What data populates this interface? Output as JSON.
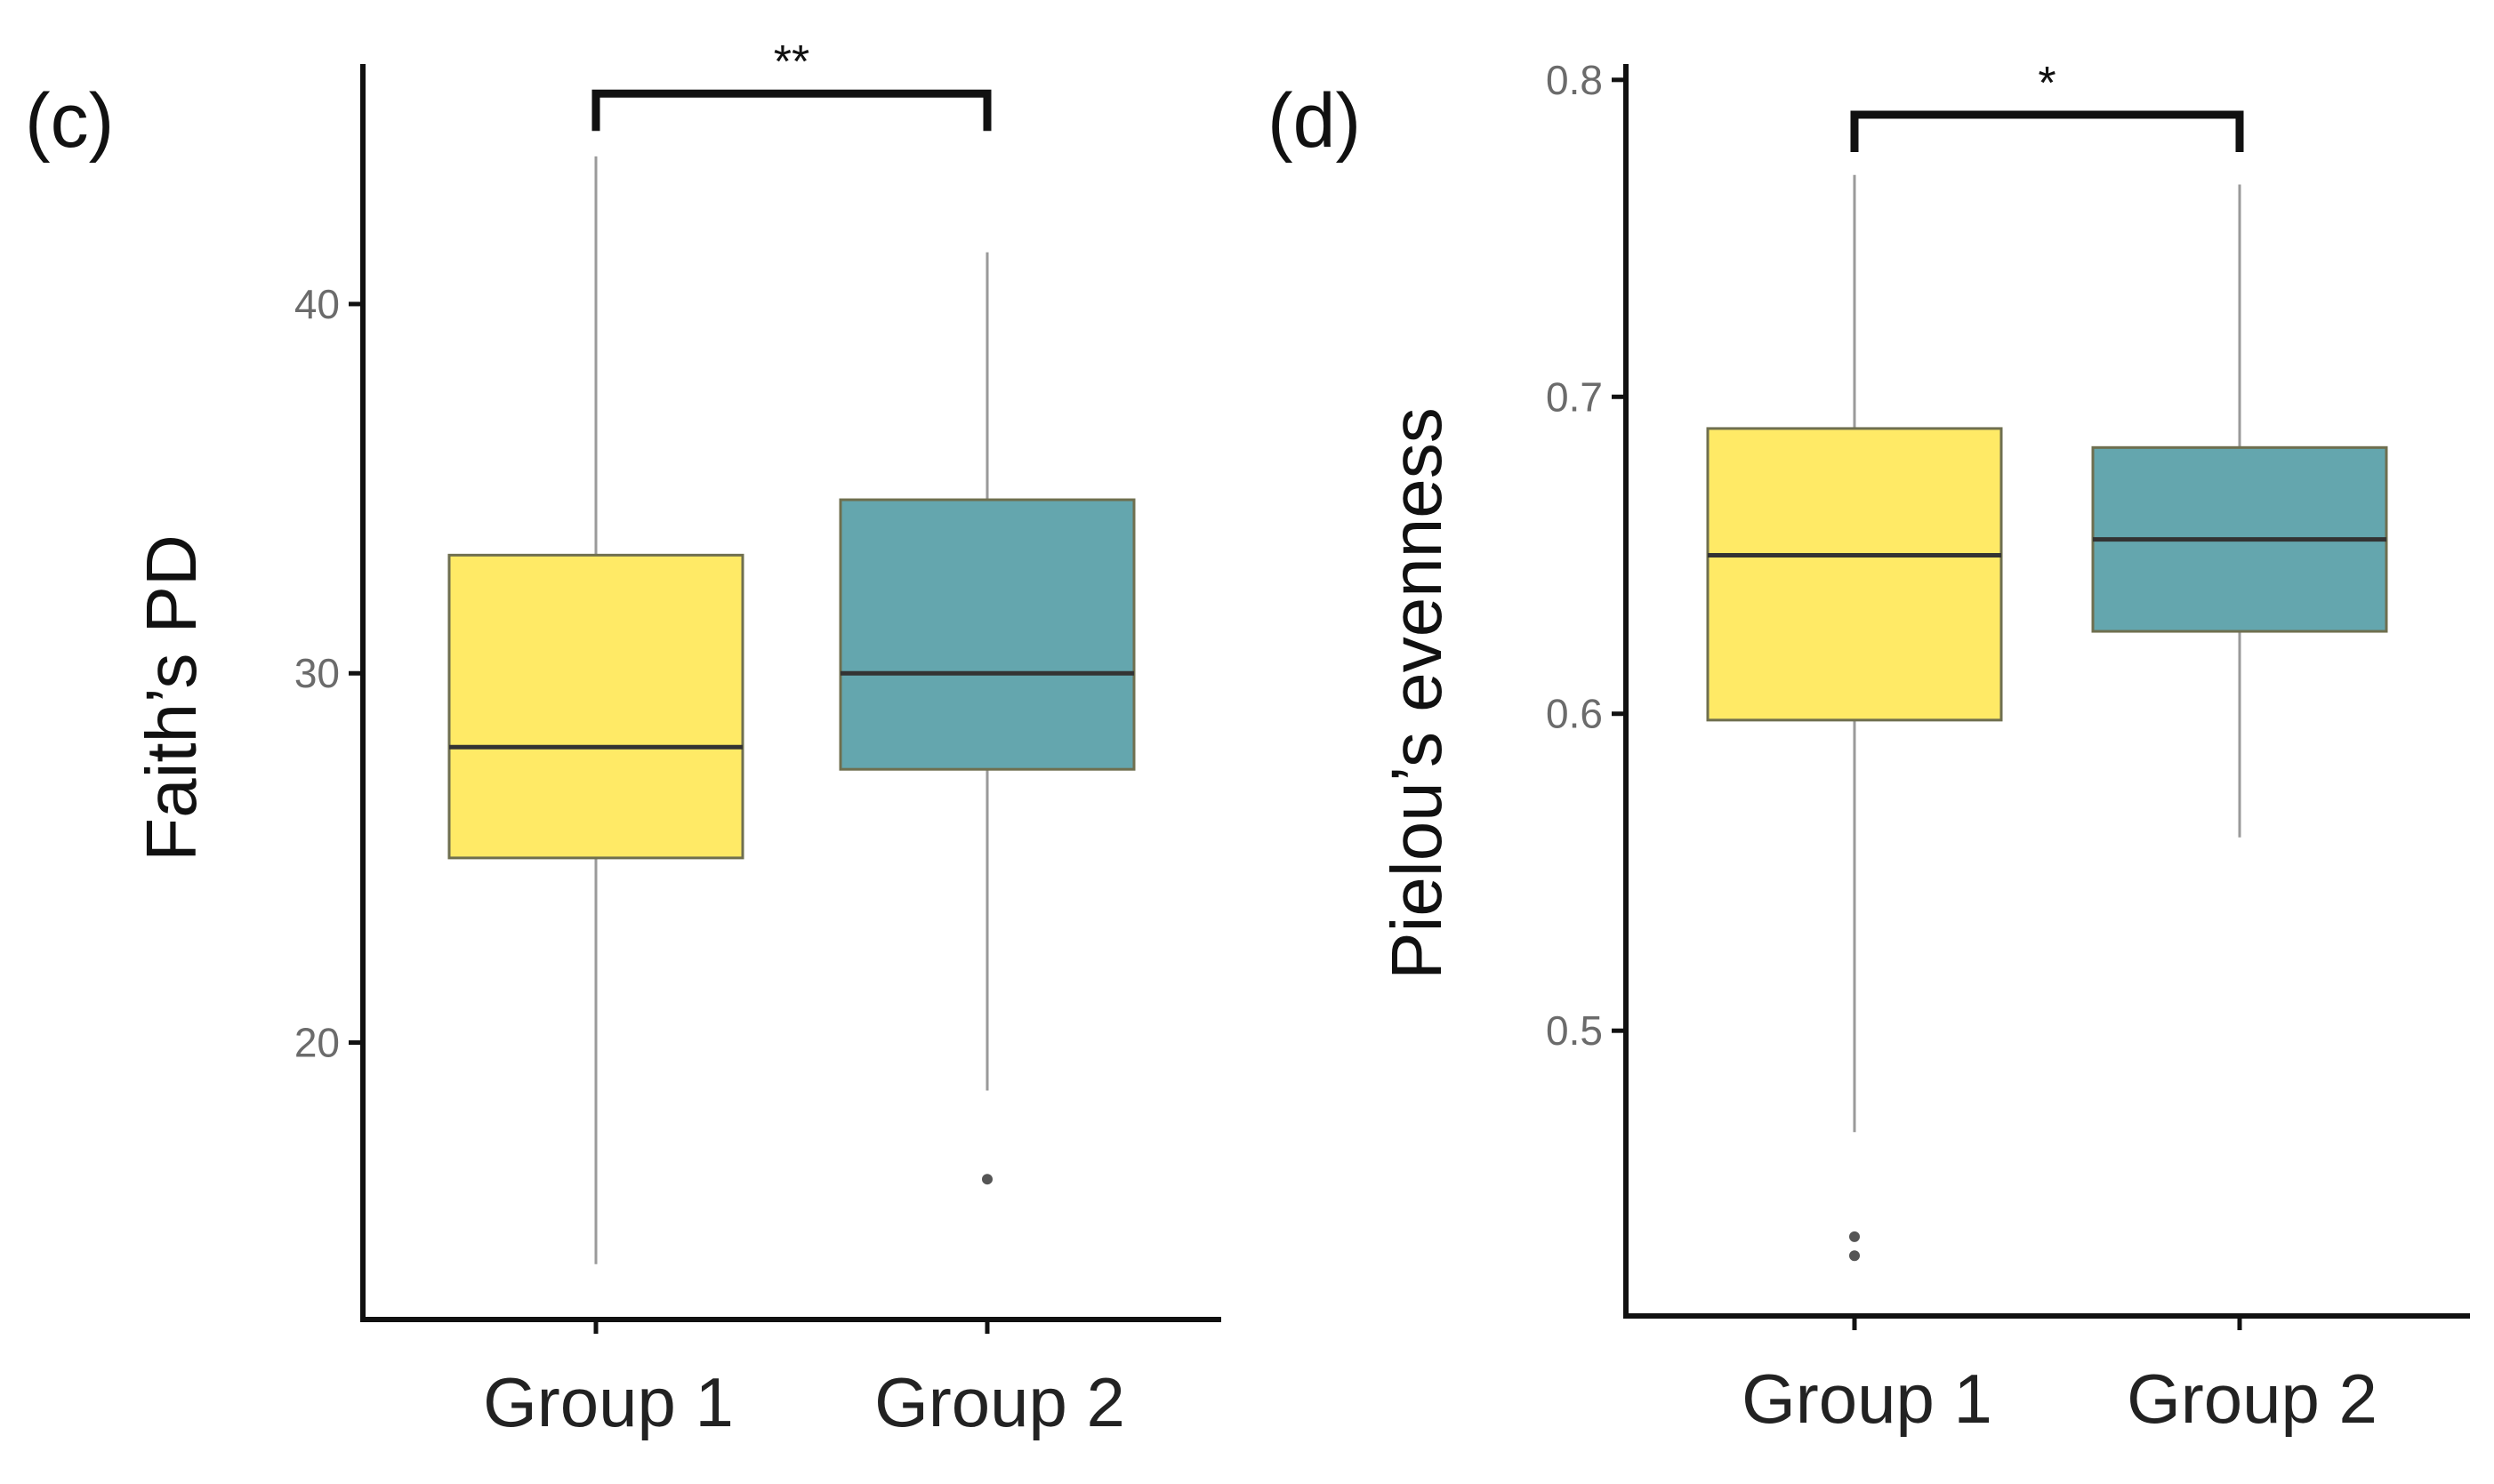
{
  "chart_data": [
    {
      "type": "box",
      "panel_label": "(c)",
      "ylabel": "Faith’s PD",
      "xlabel": "",
      "ylim": [
        12.5,
        46.5
      ],
      "yticks": [
        20,
        30,
        40
      ],
      "categories": [
        "Group 1",
        "Group 2"
      ],
      "boxes": [
        {
          "category": "Group 1",
          "whisker_low": 14.0,
          "q1": 25.0,
          "median": 28.0,
          "q3": 33.2,
          "whisker_high": 44.0,
          "outliers": [],
          "color": "#FFEA66"
        },
        {
          "category": "Group 2",
          "whisker_low": 18.7,
          "q1": 27.4,
          "median": 30.0,
          "q3": 34.7,
          "whisker_high": 41.4,
          "outliers": [
            16.3
          ],
          "color": "#64A6AE"
        }
      ],
      "significance": {
        "from": "Group 1",
        "to": "Group 2",
        "label": "**",
        "y": 45.7
      }
    },
    {
      "type": "box",
      "panel_label": "(d)",
      "ylabel": "Pielou’s evenness",
      "xlabel": "",
      "ylim": [
        0.41,
        0.805
      ],
      "yticks": [
        0.5,
        0.6,
        0.7,
        0.8
      ],
      "categories": [
        "Group 1",
        "Group 2"
      ],
      "boxes": [
        {
          "category": "Group 1",
          "whisker_low": 0.468,
          "q1": 0.598,
          "median": 0.65,
          "q3": 0.69,
          "whisker_high": 0.77,
          "outliers": [
            0.435,
            0.429
          ],
          "color": "#FFEA66"
        },
        {
          "category": "Group 2",
          "whisker_low": 0.561,
          "q1": 0.626,
          "median": 0.655,
          "q3": 0.684,
          "whisker_high": 0.767,
          "outliers": [],
          "color": "#64A6AE"
        }
      ],
      "significance": {
        "from": "Group 1",
        "to": "Group 2",
        "label": "*",
        "y": 0.789
      }
    }
  ]
}
